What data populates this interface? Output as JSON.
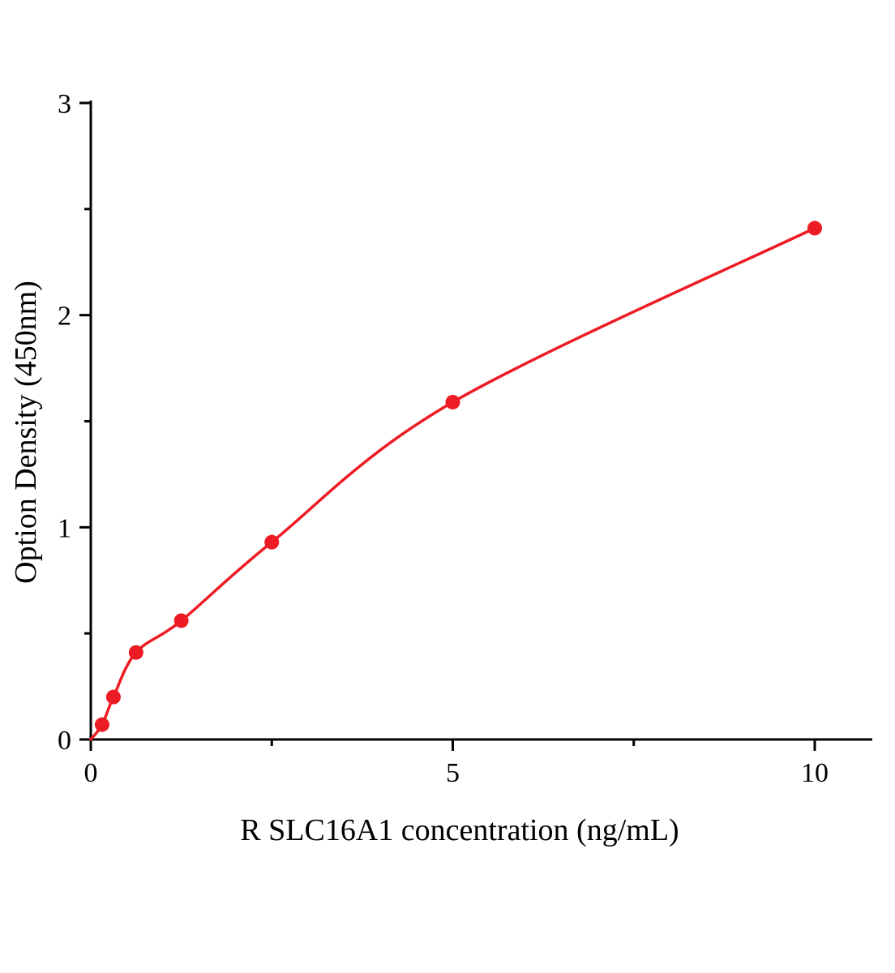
{
  "chart_data": {
    "type": "scatter",
    "title": "",
    "xlabel": "R SLC16A1  concentration (ng/mL)",
    "ylabel": "Option Density (450nm)",
    "x": [
      0.156,
      0.3125,
      0.625,
      1.25,
      2.5,
      5,
      10
    ],
    "y": [
      0.07,
      0.2,
      0.41,
      0.56,
      0.93,
      1.59,
      2.41
    ],
    "curve_start_x": 0,
    "curve_start_y": 0,
    "xlim": [
      0,
      10.8
    ],
    "ylim": [
      0,
      3
    ],
    "x_major_ticks": [
      0,
      5,
      10
    ],
    "x_minor_ticks": [
      2.5,
      7.5
    ],
    "y_major_ticks": [
      0,
      1,
      2,
      3
    ],
    "y_minor_ticks": [
      0.5,
      1.5,
      2.5
    ],
    "grid": false,
    "legend": null,
    "marker_color": "#ed1c24",
    "line_color": "#ed1c24",
    "axis_color": "#000000",
    "marker_shape": "circle"
  }
}
